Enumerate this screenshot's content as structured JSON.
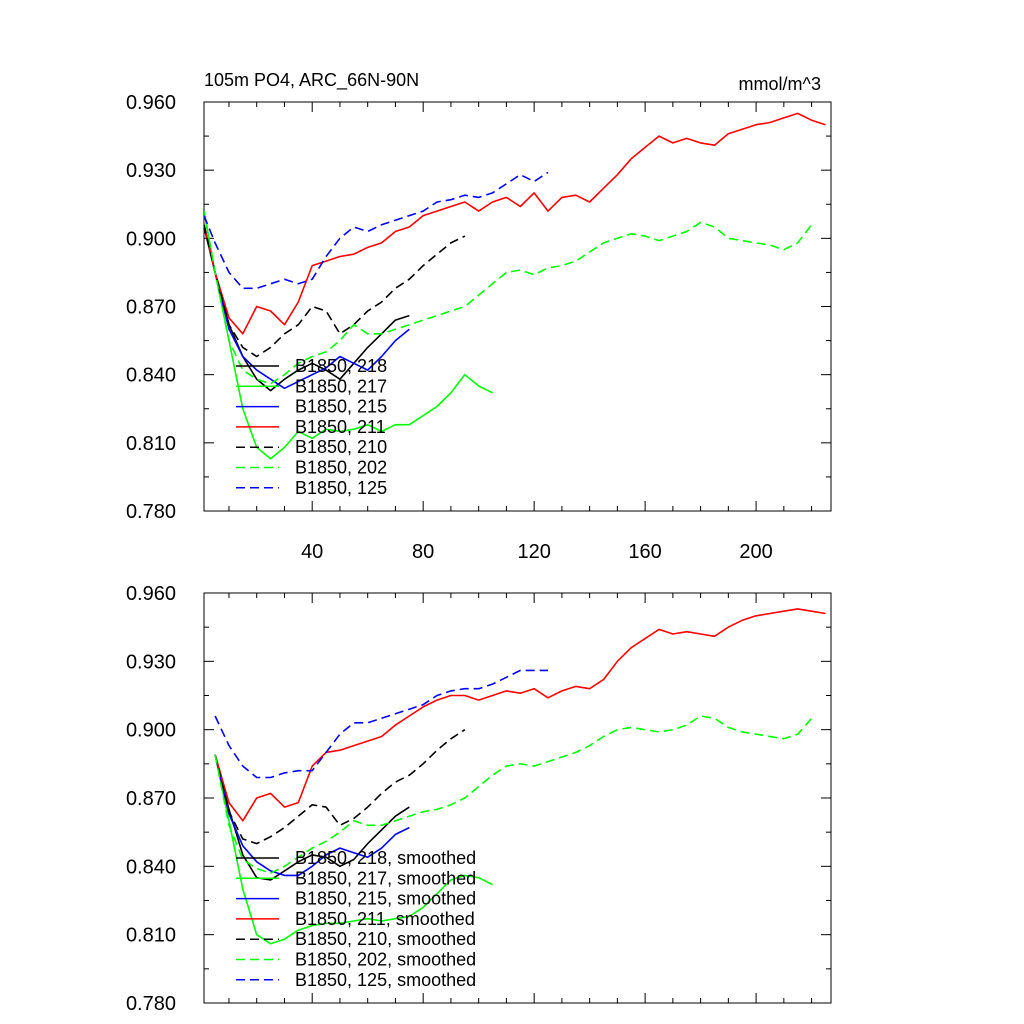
{
  "chart_data": [
    {
      "type": "line",
      "title": "105m PO4, ARC_66N-90N",
      "units": "mmol/m^3",
      "xlim": [
        1,
        227
      ],
      "ylim": [
        0.78,
        0.96
      ],
      "xticks": [
        40,
        80,
        120,
        160,
        200
      ],
      "yticks": [
        0.78,
        0.81,
        0.84,
        0.87,
        0.9,
        0.93,
        0.96
      ],
      "ytick_labels": [
        "0.780",
        "0.810",
        "0.840",
        "0.870",
        "0.900",
        "0.930",
        "0.960"
      ],
      "show_x_labels": true,
      "legend_position": "lower-left",
      "series": [
        {
          "name": "B1850, 218",
          "color": "#000000",
          "dash": "solid",
          "x": [
            1,
            5,
            10,
            15,
            20,
            25,
            30,
            35,
            40,
            45,
            50,
            55,
            60,
            65,
            70,
            75
          ],
          "y": [
            0.905,
            0.885,
            0.862,
            0.848,
            0.838,
            0.833,
            0.838,
            0.842,
            0.845,
            0.842,
            0.838,
            0.845,
            0.852,
            0.858,
            0.864,
            0.866
          ]
        },
        {
          "name": "B1850, 217",
          "color": "#00ff00",
          "dash": "solid",
          "x": [
            1,
            5,
            10,
            15,
            20,
            25,
            30,
            35,
            40,
            45,
            50,
            55,
            60,
            65,
            70,
            75,
            80,
            85,
            90,
            95,
            100,
            105
          ],
          "y": [
            0.912,
            0.885,
            0.855,
            0.825,
            0.808,
            0.803,
            0.808,
            0.815,
            0.812,
            0.816,
            0.815,
            0.816,
            0.818,
            0.815,
            0.818,
            0.818,
            0.822,
            0.826,
            0.832,
            0.84,
            0.835,
            0.832
          ]
        },
        {
          "name": "B1850, 215",
          "color": "#0000ff",
          "dash": "solid",
          "x": [
            1,
            5,
            10,
            15,
            20,
            25,
            30,
            35,
            40,
            45,
            50,
            55,
            60,
            65,
            70,
            75
          ],
          "y": [
            0.906,
            0.885,
            0.86,
            0.848,
            0.842,
            0.838,
            0.834,
            0.837,
            0.84,
            0.843,
            0.848,
            0.845,
            0.842,
            0.848,
            0.855,
            0.86
          ]
        },
        {
          "name": "B1850, 211",
          "color": "#ff0000",
          "dash": "solid",
          "x": [
            1,
            5,
            10,
            15,
            20,
            25,
            30,
            35,
            40,
            45,
            50,
            55,
            60,
            65,
            70,
            75,
            80,
            85,
            90,
            95,
            100,
            105,
            110,
            115,
            120,
            125,
            130,
            135,
            140,
            145,
            150,
            155,
            160,
            165,
            170,
            175,
            180,
            185,
            190,
            195,
            200,
            205,
            210,
            215,
            220,
            225
          ],
          "y": [
            0.906,
            0.885,
            0.865,
            0.858,
            0.87,
            0.868,
            0.862,
            0.872,
            0.888,
            0.89,
            0.892,
            0.893,
            0.896,
            0.898,
            0.903,
            0.905,
            0.91,
            0.912,
            0.914,
            0.916,
            0.912,
            0.916,
            0.918,
            0.914,
            0.92,
            0.912,
            0.918,
            0.919,
            0.916,
            0.922,
            0.928,
            0.935,
            0.94,
            0.945,
            0.942,
            0.944,
            0.942,
            0.941,
            0.946,
            0.948,
            0.95,
            0.951,
            0.953,
            0.955,
            0.952,
            0.95
          ]
        },
        {
          "name": "B1850, 210",
          "color": "#000000",
          "dash": "dashed",
          "x": [
            1,
            5,
            10,
            15,
            20,
            25,
            30,
            35,
            40,
            45,
            50,
            55,
            60,
            65,
            70,
            75,
            80,
            85,
            90,
            95
          ],
          "y": [
            0.906,
            0.885,
            0.862,
            0.852,
            0.848,
            0.852,
            0.858,
            0.862,
            0.87,
            0.868,
            0.858,
            0.862,
            0.868,
            0.872,
            0.878,
            0.882,
            0.888,
            0.893,
            0.898,
            0.901
          ]
        },
        {
          "name": "B1850, 202",
          "color": "#00ff00",
          "dash": "dashed",
          "x": [
            1,
            5,
            10,
            15,
            20,
            25,
            30,
            35,
            40,
            45,
            50,
            55,
            60,
            65,
            70,
            75,
            80,
            85,
            90,
            95,
            100,
            105,
            110,
            115,
            120,
            125,
            130,
            135,
            140,
            145,
            150,
            155,
            160,
            165,
            170,
            175,
            180,
            185,
            190,
            195,
            200,
            205,
            210,
            215,
            220
          ],
          "y": [
            0.912,
            0.885,
            0.855,
            0.842,
            0.838,
            0.836,
            0.84,
            0.845,
            0.848,
            0.85,
            0.855,
            0.862,
            0.858,
            0.858,
            0.86,
            0.862,
            0.864,
            0.866,
            0.868,
            0.87,
            0.875,
            0.88,
            0.885,
            0.886,
            0.884,
            0.887,
            0.888,
            0.89,
            0.894,
            0.898,
            0.9,
            0.902,
            0.901,
            0.899,
            0.901,
            0.903,
            0.907,
            0.905,
            0.9,
            0.899,
            0.898,
            0.897,
            0.895,
            0.898,
            0.906
          ]
        },
        {
          "name": "B1850, 125",
          "color": "#0000ff",
          "dash": "dashed",
          "x": [
            1,
            5,
            10,
            15,
            20,
            25,
            30,
            35,
            40,
            45,
            50,
            55,
            60,
            65,
            70,
            75,
            80,
            85,
            90,
            95,
            100,
            105,
            110,
            115,
            120,
            125
          ],
          "y": [
            0.91,
            0.898,
            0.885,
            0.878,
            0.878,
            0.88,
            0.882,
            0.88,
            0.882,
            0.892,
            0.9,
            0.905,
            0.903,
            0.906,
            0.908,
            0.91,
            0.912,
            0.916,
            0.917,
            0.919,
            0.918,
            0.92,
            0.924,
            0.928,
            0.925,
            0.929
          ]
        }
      ]
    },
    {
      "type": "line",
      "title": "",
      "xlim": [
        1,
        227
      ],
      "ylim": [
        0.78,
        0.96
      ],
      "xticks": [
        40,
        80,
        120,
        160,
        200
      ],
      "yticks": [
        0.78,
        0.81,
        0.84,
        0.87,
        0.9,
        0.93,
        0.96
      ],
      "ytick_labels": [
        "0.780",
        "0.810",
        "0.840",
        "0.870",
        "0.900",
        "0.930",
        "0.960"
      ],
      "show_x_labels": false,
      "legend_position": "lower-left",
      "series": [
        {
          "name": "B1850, 218, smoothed",
          "color": "#000000",
          "dash": "solid",
          "x": [
            5,
            10,
            15,
            20,
            25,
            30,
            35,
            40,
            45,
            50,
            55,
            60,
            65,
            70,
            75
          ],
          "y": [
            0.889,
            0.865,
            0.845,
            0.835,
            0.834,
            0.838,
            0.842,
            0.845,
            0.844,
            0.84,
            0.843,
            0.85,
            0.856,
            0.862,
            0.866
          ]
        },
        {
          "name": "B1850, 217, smoothed",
          "color": "#00ff00",
          "dash": "solid",
          "x": [
            5,
            10,
            15,
            20,
            25,
            30,
            35,
            40,
            45,
            50,
            55,
            60,
            65,
            70,
            75,
            80,
            85,
            90,
            95,
            100,
            105
          ],
          "y": [
            0.889,
            0.86,
            0.83,
            0.81,
            0.806,
            0.808,
            0.812,
            0.814,
            0.815,
            0.815,
            0.816,
            0.817,
            0.816,
            0.817,
            0.818,
            0.822,
            0.828,
            0.834,
            0.836,
            0.835,
            0.832
          ]
        },
        {
          "name": "B1850, 215, smoothed",
          "color": "#0000ff",
          "dash": "solid",
          "x": [
            5,
            10,
            15,
            20,
            25,
            30,
            35,
            40,
            45,
            50,
            55,
            60,
            65,
            70,
            75
          ],
          "y": [
            0.889,
            0.863,
            0.849,
            0.842,
            0.838,
            0.836,
            0.836,
            0.84,
            0.845,
            0.848,
            0.846,
            0.844,
            0.848,
            0.854,
            0.857
          ]
        },
        {
          "name": "B1850, 211, smoothed",
          "color": "#ff0000",
          "dash": "solid",
          "x": [
            5,
            10,
            15,
            20,
            25,
            30,
            35,
            40,
            45,
            50,
            55,
            60,
            65,
            70,
            75,
            80,
            85,
            90,
            95,
            100,
            105,
            110,
            115,
            120,
            125,
            130,
            135,
            140,
            145,
            150,
            155,
            160,
            165,
            170,
            175,
            180,
            185,
            190,
            195,
            200,
            205,
            210,
            215,
            220,
            225
          ],
          "y": [
            0.889,
            0.868,
            0.86,
            0.87,
            0.872,
            0.866,
            0.868,
            0.884,
            0.89,
            0.891,
            0.893,
            0.895,
            0.897,
            0.902,
            0.906,
            0.91,
            0.913,
            0.915,
            0.915,
            0.913,
            0.915,
            0.917,
            0.916,
            0.918,
            0.914,
            0.917,
            0.919,
            0.918,
            0.922,
            0.93,
            0.936,
            0.94,
            0.944,
            0.942,
            0.943,
            0.942,
            0.941,
            0.945,
            0.948,
            0.95,
            0.951,
            0.952,
            0.953,
            0.952,
            0.951
          ]
        },
        {
          "name": "B1850, 210, smoothed",
          "color": "#000000",
          "dash": "dashed",
          "x": [
            5,
            10,
            15,
            20,
            25,
            30,
            35,
            40,
            45,
            50,
            55,
            60,
            65,
            70,
            75,
            80,
            85,
            90,
            95
          ],
          "y": [
            0.889,
            0.864,
            0.852,
            0.85,
            0.853,
            0.857,
            0.862,
            0.867,
            0.866,
            0.858,
            0.861,
            0.866,
            0.872,
            0.877,
            0.88,
            0.885,
            0.891,
            0.896,
            0.9
          ]
        },
        {
          "name": "B1850, 202, smoothed",
          "color": "#00ff00",
          "dash": "dashed",
          "x": [
            5,
            10,
            15,
            20,
            25,
            30,
            35,
            40,
            45,
            50,
            55,
            60,
            65,
            70,
            75,
            80,
            85,
            90,
            95,
            100,
            105,
            110,
            115,
            120,
            125,
            130,
            135,
            140,
            145,
            150,
            155,
            160,
            165,
            170,
            175,
            180,
            185,
            190,
            195,
            200,
            205,
            210,
            215,
            220
          ],
          "y": [
            0.889,
            0.858,
            0.843,
            0.839,
            0.837,
            0.84,
            0.844,
            0.848,
            0.851,
            0.855,
            0.86,
            0.858,
            0.858,
            0.86,
            0.862,
            0.864,
            0.865,
            0.867,
            0.87,
            0.875,
            0.88,
            0.884,
            0.885,
            0.884,
            0.886,
            0.888,
            0.89,
            0.893,
            0.897,
            0.9,
            0.901,
            0.9,
            0.899,
            0.9,
            0.902,
            0.906,
            0.905,
            0.901,
            0.899,
            0.898,
            0.897,
            0.896,
            0.898,
            0.905
          ]
        },
        {
          "name": "B1850, 125, smoothed",
          "color": "#0000ff",
          "dash": "dashed",
          "x": [
            5,
            10,
            15,
            20,
            25,
            30,
            35,
            40,
            45,
            50,
            55,
            60,
            65,
            70,
            75,
            80,
            85,
            90,
            95,
            100,
            105,
            110,
            115,
            120,
            125
          ],
          "y": [
            0.906,
            0.893,
            0.884,
            0.879,
            0.879,
            0.881,
            0.882,
            0.882,
            0.89,
            0.898,
            0.903,
            0.903,
            0.905,
            0.907,
            0.909,
            0.911,
            0.915,
            0.917,
            0.918,
            0.918,
            0.92,
            0.923,
            0.926,
            0.926,
            0.926
          ]
        }
      ]
    }
  ]
}
